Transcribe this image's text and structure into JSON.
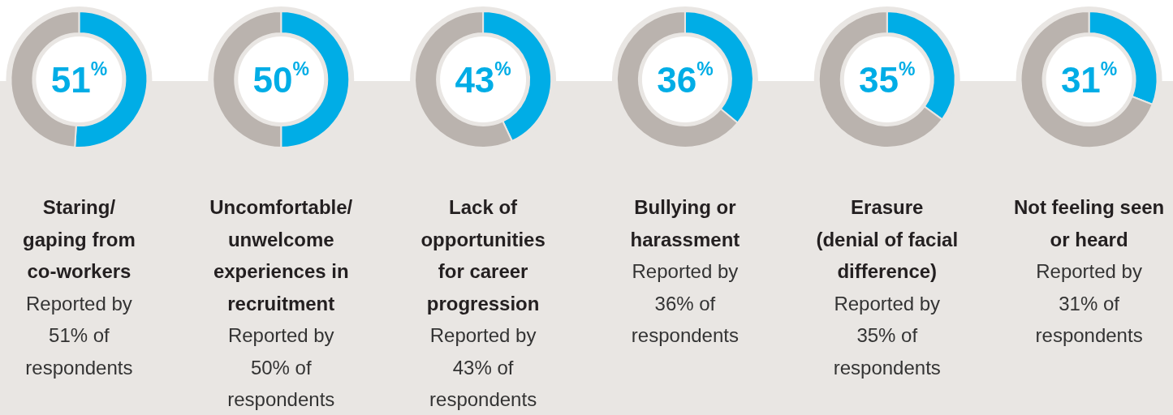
{
  "chart_data": [
    {
      "type": "donut",
      "title": "Staring/ gaping from co-workers",
      "categories": [
        null,
        null
      ],
      "values": [
        51,
        49
      ],
      "colors": [
        "#00ade6",
        "#bab3ae"
      ],
      "annotations": [
        "51$^{%}$",
        "Reported by 51% of respondents"
      ]
    },
    {
      "type": "donut",
      "title": "Uncomfortable/ unwelcome experiences in recruitment",
      "categories": [
        null,
        null
      ],
      "values": [
        50,
        50
      ],
      "colors": [
        "#00ade6",
        "#bab3ae"
      ],
      "annotations": [
        "50$^{%}$",
        "Reported by 50% of respondents"
      ]
    },
    {
      "type": "donut",
      "title": "Lack of opportunities for career progression",
      "categories": [
        null,
        null
      ],
      "values": [
        43,
        57
      ],
      "colors": [
        "#00ade6",
        "#bab3ae"
      ],
      "annotations": [
        "43$^{%}$",
        "Reported by 43% of respondents"
      ]
    },
    {
      "type": "donut",
      "title": "Bullying or harassment",
      "categories": [
        null,
        null
      ],
      "values": [
        36,
        64
      ],
      "colors": [
        "#00ade6",
        "#bab3ae"
      ],
      "annotations": [
        "36$^{%}$",
        "Reported by 36% of respondents"
      ]
    },
    {
      "type": "donut",
      "title": "Erasure (denial of facial difference)",
      "categories": [
        null,
        null
      ],
      "values": [
        35,
        65
      ],
      "colors": [
        "#00ade6",
        "#bab3ae"
      ],
      "annotations": [
        "35$^{%}$",
        "Reported by 35% of respondents"
      ]
    },
    {
      "type": "donut",
      "title": "Not feeling seen or heard",
      "categories": [
        null,
        null
      ],
      "values": [
        31,
        69
      ],
      "colors": [
        "#00ade6",
        "#bab3ae"
      ],
      "annotations": [
        "31$^{%}$",
        "Reported by 31% of respondents"
      ]
    }
  ]
}
